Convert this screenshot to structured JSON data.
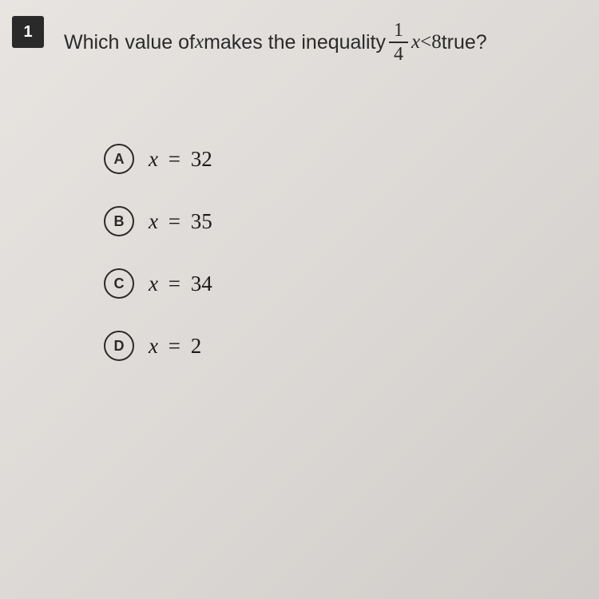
{
  "question": {
    "number": "1",
    "text_part1": "Which value of ",
    "text_var1": "x",
    "text_part2": " makes the inequality ",
    "frac_num": "1",
    "frac_den": "4",
    "text_var2": "x",
    "text_lt": " < ",
    "text_val": "8",
    "text_part3": " true?"
  },
  "options": [
    {
      "letter": "A",
      "var": "x",
      "eq": "=",
      "value": "32"
    },
    {
      "letter": "B",
      "var": "x",
      "eq": "=",
      "value": "35"
    },
    {
      "letter": "C",
      "var": "x",
      "eq": "=",
      "value": "34"
    },
    {
      "letter": "D",
      "var": "x",
      "eq": "=",
      "value": "2"
    }
  ],
  "styling": {
    "background_gradient_start": "#e8e4e1",
    "background_gradient_end": "#d0ccc9",
    "question_number_bg": "#2a2a2a",
    "question_number_color": "#ffffff",
    "question_text_color": "#2a2a2a",
    "option_border_color": "#2a2a2a",
    "option_text_color": "#1a1a1a",
    "question_fontsize": 25,
    "option_fontsize": 27,
    "option_letter_fontsize": 18,
    "option_circle_diameter": 38,
    "option_gap": 40
  }
}
